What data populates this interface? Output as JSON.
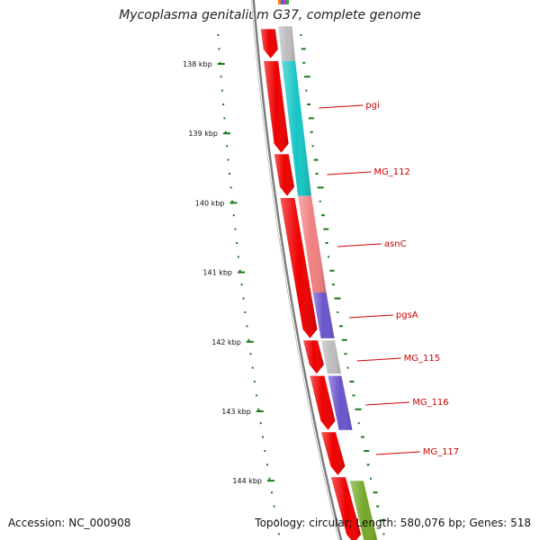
{
  "title": "Mycoplasma genitalium G37, complete genome",
  "footer": {
    "accession": "Accession: NC_000908",
    "topology": "Topology: circular; Length: 580,076 bp; Genes: 518"
  },
  "colors": {
    "backbone": "#7a7a7a",
    "strand_forward": "#ee0000",
    "tick": "#1a7a1a",
    "label": "#cc0000"
  },
  "ruler": [
    {
      "kbp": 138,
      "label": "138 kbp"
    },
    {
      "kbp": 139,
      "label": "139 kbp"
    },
    {
      "kbp": 140,
      "label": "140 kbp"
    },
    {
      "kbp": 141,
      "label": "141 kbp"
    },
    {
      "kbp": 142,
      "label": "142 kbp"
    },
    {
      "kbp": 143,
      "label": "143 kbp"
    },
    {
      "kbp": 144,
      "label": "144 kbp"
    }
  ],
  "genes": [
    {
      "name": "",
      "color": "#bdbdbd",
      "start_kbp": 137.46,
      "end_kbp": 137.96
    },
    {
      "name": "pgi",
      "color": "#16c5c5",
      "start_kbp": 137.96,
      "end_kbp": 139.9
    },
    {
      "name": "MG_112",
      "color": "#16c5c5",
      "start_kbp": 137.96,
      "end_kbp": 139.9
    },
    {
      "name": "asnC",
      "color": "#f08080",
      "start_kbp": 139.9,
      "end_kbp": 141.29
    },
    {
      "name": "pgsA",
      "color": "#6a55cc",
      "start_kbp": 141.29,
      "end_kbp": 141.95
    },
    {
      "name": "MG_115",
      "color": "#bdbdbd",
      "start_kbp": 141.98,
      "end_kbp": 142.46
    },
    {
      "name": "MG_116",
      "color": "#6a55cc",
      "start_kbp": 142.49,
      "end_kbp": 143.27
    },
    {
      "name": "MG_117",
      "color": "",
      "start_kbp": 0,
      "end_kbp": 0
    },
    {
      "name": "",
      "color": "#76a82a",
      "start_kbp": 144.0,
      "end_kbp": 144.9
    }
  ],
  "strand_blocks": [
    {
      "start_kbp": 137.5,
      "end_kbp": 137.92
    },
    {
      "start_kbp": 137.96,
      "end_kbp": 139.28
    },
    {
      "start_kbp": 139.3,
      "end_kbp": 139.9
    },
    {
      "start_kbp": 139.93,
      "end_kbp": 141.95
    },
    {
      "start_kbp": 141.98,
      "end_kbp": 142.46
    },
    {
      "start_kbp": 142.49,
      "end_kbp": 143.27
    },
    {
      "start_kbp": 143.3,
      "end_kbp": 143.92
    },
    {
      "start_kbp": 143.95,
      "end_kbp": 144.9
    }
  ]
}
